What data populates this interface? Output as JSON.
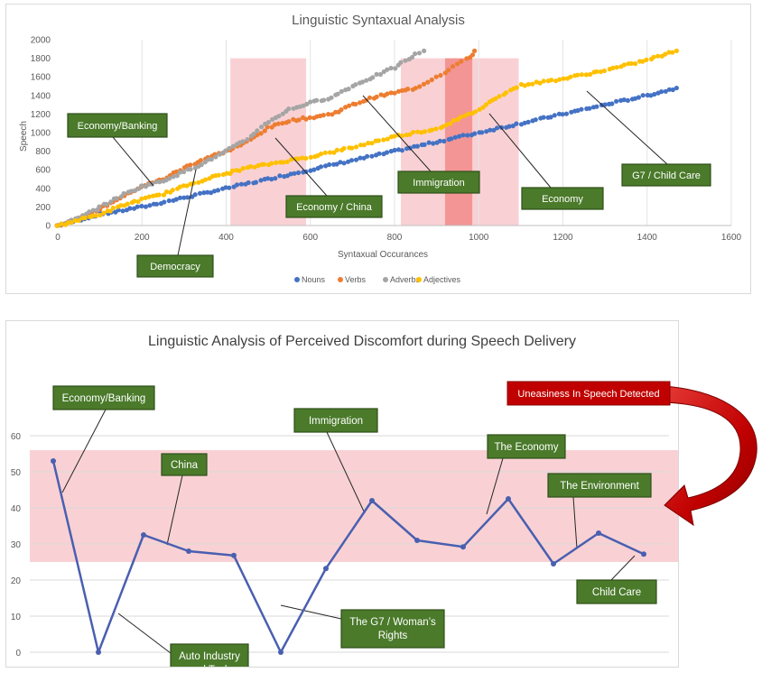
{
  "chart_data": [
    {
      "type": "scatter",
      "title": "Linguistic Syntaxual Analysis",
      "xlabel": "Syntaxual Occurances",
      "ylabel": "Speech",
      "xlim": [
        0,
        1600
      ],
      "ylim": [
        0,
        2000
      ],
      "xticks": [
        "0",
        "200",
        "400",
        "600",
        "800",
        "1000",
        "1200",
        "1400",
        "1600"
      ],
      "yticks": [
        "0",
        "200",
        "400",
        "600",
        "800",
        "1000",
        "1200",
        "1400",
        "1600",
        "1800",
        "2000"
      ],
      "grid": "vertical",
      "legend": "bottom",
      "series": [
        {
          "name": "Nouns",
          "color": "#4472C4",
          "points": [
            [
              0,
              0
            ],
            [
              100,
              120
            ],
            [
              200,
              200
            ],
            [
              300,
              300
            ],
            [
              400,
              400
            ],
            [
              500,
              500
            ],
            [
              600,
              600
            ],
            [
              700,
              700
            ],
            [
              800,
              800
            ],
            [
              900,
              900
            ],
            [
              1000,
              1000
            ],
            [
              1100,
              1100
            ],
            [
              1200,
              1200
            ],
            [
              1300,
              1300
            ],
            [
              1400,
              1400
            ],
            [
              1470,
              1480
            ]
          ]
        },
        {
          "name": "Verbs",
          "color": "#ED7D31",
          "points": [
            [
              0,
              0
            ],
            [
              50,
              80
            ],
            [
              100,
              180
            ],
            [
              150,
              300
            ],
            [
              200,
              420
            ],
            [
              250,
              500
            ],
            [
              300,
              620
            ],
            [
              350,
              720
            ],
            [
              400,
              800
            ],
            [
              450,
              900
            ],
            [
              500,
              1050
            ],
            [
              550,
              1130
            ],
            [
              600,
              1160
            ],
            [
              650,
              1200
            ],
            [
              700,
              1300
            ],
            [
              750,
              1380
            ],
            [
              800,
              1430
            ],
            [
              850,
              1480
            ],
            [
              880,
              1550
            ],
            [
              920,
              1650
            ],
            [
              950,
              1740
            ],
            [
              980,
              1810
            ],
            [
              990,
              1880
            ]
          ]
        },
        {
          "name": "Adverbs",
          "color": "#A5A5A5",
          "points": [
            [
              0,
              0
            ],
            [
              50,
              80
            ],
            [
              100,
              200
            ],
            [
              150,
              320
            ],
            [
              200,
              420
            ],
            [
              250,
              480
            ],
            [
              300,
              580
            ],
            [
              350,
              680
            ],
            [
              400,
              800
            ],
            [
              450,
              930
            ],
            [
              500,
              1120
            ],
            [
              550,
              1250
            ],
            [
              600,
              1320
            ],
            [
              650,
              1380
            ],
            [
              700,
              1500
            ],
            [
              750,
              1600
            ],
            [
              800,
              1700
            ],
            [
              850,
              1840
            ],
            [
              870,
              1880
            ]
          ]
        },
        {
          "name": "Adjectives",
          "color": "#FFC000",
          "points": [
            [
              0,
              0
            ],
            [
              50,
              60
            ],
            [
              100,
              120
            ],
            [
              150,
              210
            ],
            [
              200,
              280
            ],
            [
              250,
              340
            ],
            [
              300,
              420
            ],
            [
              350,
              500
            ],
            [
              400,
              560
            ],
            [
              450,
              620
            ],
            [
              500,
              660
            ],
            [
              600,
              740
            ],
            [
              700,
              840
            ],
            [
              800,
              960
            ],
            [
              900,
              1040
            ],
            [
              950,
              1140
            ],
            [
              1000,
              1250
            ],
            [
              1050,
              1400
            ],
            [
              1100,
              1510
            ],
            [
              1200,
              1580
            ],
            [
              1300,
              1670
            ],
            [
              1400,
              1780
            ],
            [
              1470,
              1880
            ]
          ]
        }
      ],
      "highlight_bands": [
        [
          410,
          590
        ],
        [
          815,
          985
        ],
        [
          920,
          985
        ],
        [
          985,
          1095
        ]
      ],
      "annotations": [
        "Economy/Banking",
        "Democracy",
        "Economy / China",
        "Immigration",
        "Economy",
        "G7 / Child Care"
      ]
    },
    {
      "type": "line",
      "title": "Linguistic Analysis of Perceived Discomfort during Speech Delivery",
      "ylim": [
        0,
        60
      ],
      "yticks": [
        "0",
        "10",
        "20",
        "30",
        "40",
        "50",
        "60"
      ],
      "grid": "horizontal",
      "highlight_band": [
        25,
        56
      ],
      "series": [
        {
          "color": "#4A5FB0",
          "values": [
            53,
            0,
            32.5,
            28,
            26.8,
            0,
            23.2,
            42,
            31,
            29.2,
            42.5,
            24.5,
            33,
            27.2
          ]
        }
      ],
      "annotations": [
        "Economy/Banking",
        "China",
        "Immigration",
        "The Economy",
        "The Environment",
        "Child Care",
        "Auto Industry and Tech",
        "The G7 / Woman's Rights"
      ],
      "callout": "Uneasiness In Speech Detected"
    }
  ]
}
